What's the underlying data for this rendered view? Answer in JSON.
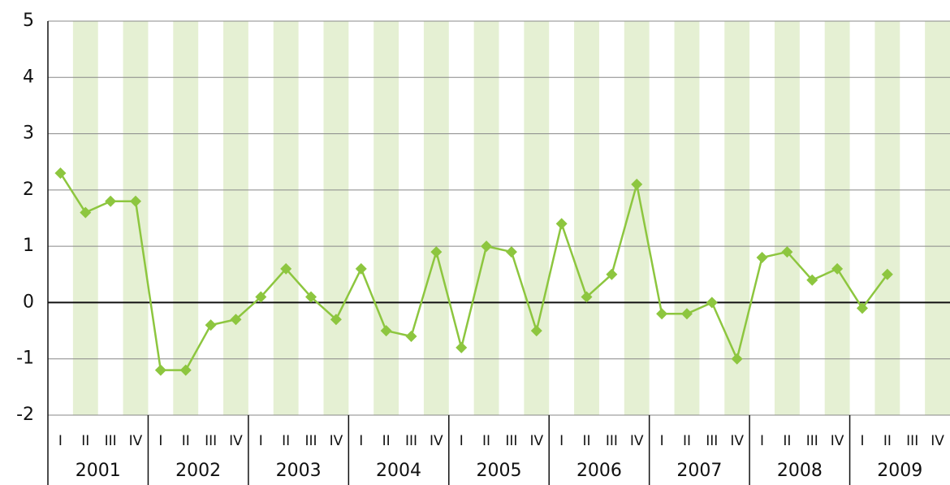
{
  "chart_data": {
    "type": "line",
    "categories": [
      "I",
      "II",
      "III",
      "IV",
      "I",
      "II",
      "III",
      "IV",
      "I",
      "II",
      "III",
      "IV",
      "I",
      "II",
      "III",
      "IV",
      "I",
      "II",
      "III",
      "IV",
      "I",
      "II",
      "III",
      "IV",
      "I",
      "II",
      "III",
      "IV",
      "I",
      "II",
      "III",
      "IV",
      "I",
      "II",
      "III",
      "IV"
    ],
    "groups": [
      "2001",
      "2002",
      "2003",
      "2004",
      "2005",
      "2006",
      "2007",
      "2008",
      "2009"
    ],
    "series": [
      {
        "color": "#8dc63f",
        "values": [
          2.3,
          1.6,
          1.8,
          1.8,
          -1.2,
          -1.2,
          -0.4,
          -0.3,
          0.1,
          0.6,
          0.1,
          -0.3,
          0.6,
          -0.5,
          -0.6,
          0.9,
          -0.8,
          1.0,
          0.9,
          -0.5,
          1.4,
          0.1,
          0.5,
          2.1,
          -0.2,
          -0.2,
          0.0,
          -1.0,
          0.8,
          0.9,
          0.4,
          0.6,
          -0.1,
          0.5,
          null,
          null
        ]
      }
    ],
    "ylim": [
      -2,
      5
    ],
    "yticks": [
      -2,
      -1,
      0,
      1,
      2,
      3,
      4,
      5
    ],
    "grid": true,
    "stripe_color": "#e5f0d3"
  }
}
